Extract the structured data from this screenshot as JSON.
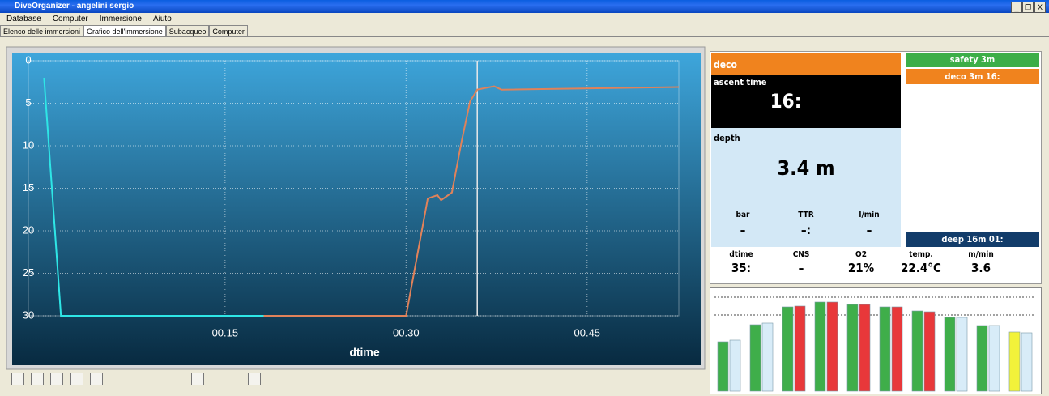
{
  "window": {
    "title": "DiveOrganizer - angelini sergio",
    "menu": [
      "Database",
      "Computer",
      "Immersione",
      "Aiuto"
    ],
    "tabs": [
      "Elenco delle immersioni",
      "Grafico dell'immersione",
      "Subacqueo",
      "Computer"
    ],
    "controls": [
      "_",
      "❐",
      "X"
    ]
  },
  "chart_data": {
    "type": "line",
    "x_label": "dtime",
    "xlim": [
      -1.3,
      52.6
    ],
    "xticks": [
      {
        "value": 15,
        "label": "00.15"
      },
      {
        "value": 30,
        "label": "00.30"
      },
      {
        "value": 45,
        "label": "00.45"
      }
    ],
    "ylim": [
      0,
      30
    ],
    "yticks": [
      0,
      5,
      10,
      15,
      20,
      25,
      30
    ],
    "y_reversed": true,
    "grid": true,
    "cursor": 35.9,
    "series": [
      {
        "color": "#2ee6e6",
        "x": [
          0,
          1.4,
          18.2
        ],
        "values": [
          2,
          30,
          30
        ]
      },
      {
        "color": "#e0825a",
        "x": [
          18.2,
          30.0,
          31.8,
          32.6,
          32.9,
          33.8,
          34.6,
          35.3,
          35.9,
          37.3,
          37.9,
          52.6
        ],
        "values": [
          30,
          30,
          16.2,
          15.8,
          16.4,
          15.5,
          9.5,
          4.8,
          3.4,
          3.0,
          3.4,
          3.1
        ]
      }
    ]
  },
  "panel": {
    "deco": "deco",
    "ascent_label": "ascent time",
    "ascent_value": "16:",
    "depth_label": "depth",
    "depth_value": "3.4 m",
    "row1": [
      [
        "bar",
        "–"
      ],
      [
        "TTR",
        "–:"
      ],
      [
        "l/min",
        "–"
      ]
    ],
    "row2": [
      [
        "dtime",
        "35:"
      ],
      [
        "CNS",
        "–"
      ],
      [
        "O2",
        "21%"
      ],
      [
        "temp.",
        "22.4°C"
      ],
      [
        "m/min",
        "3.6"
      ]
    ],
    "stops": {
      "safety": "safety 3m",
      "deco": "deco 3m 16:",
      "deep": "deep 16m 01:"
    }
  },
  "tissues": {
    "ylim": [
      0,
      120
    ],
    "left": [
      61,
      82,
      104,
      110,
      107,
      104,
      99,
      91,
      81,
      73
    ],
    "right": [
      63,
      84,
      105,
      110,
      107,
      104,
      98,
      91,
      81,
      72
    ],
    "left_colors": [
      "#3fae4a",
      "#3fae4a",
      "#3fae4a",
      "#3fae4a",
      "#3fae4a",
      "#3fae4a",
      "#3fae4a",
      "#3fae4a",
      "#3fae4a",
      "#f2f23a"
    ],
    "right_colors": [
      "#d8ecf8",
      "#d8ecf8",
      "#e8383a",
      "#e8383a",
      "#e8383a",
      "#e8383a",
      "#e8383a",
      "#d8ecf8",
      "#d8ecf8",
      "#d8ecf8"
    ]
  }
}
